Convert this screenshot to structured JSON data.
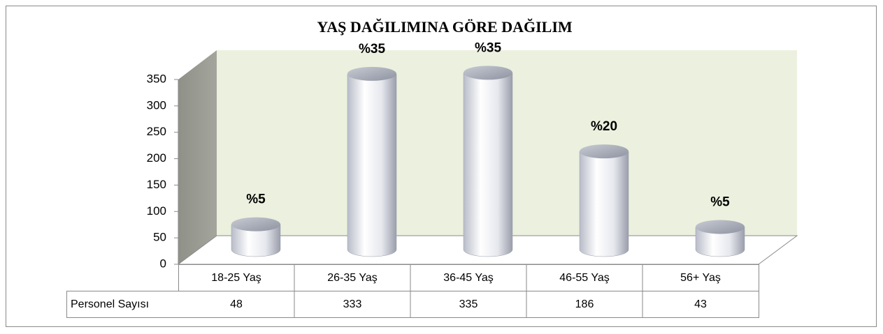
{
  "chart_data": {
    "type": "bar",
    "title": "YAŞ DAĞILIMINA GÖRE DAĞILIM",
    "categories": [
      "18-25 Yaş",
      "26-35 Yaş",
      "36-45 Yaş",
      "46-55 Yaş",
      "56+ Yaş"
    ],
    "series": [
      {
        "name": "Personel Sayısı",
        "values": [
          48,
          333,
          335,
          186,
          43
        ]
      }
    ],
    "percent_labels": [
      "%5",
      "%35",
      "%35",
      "%20",
      "%5"
    ],
    "ylim": [
      0,
      350
    ],
    "yticks": [
      0,
      50,
      100,
      150,
      200,
      250,
      300,
      350
    ]
  }
}
